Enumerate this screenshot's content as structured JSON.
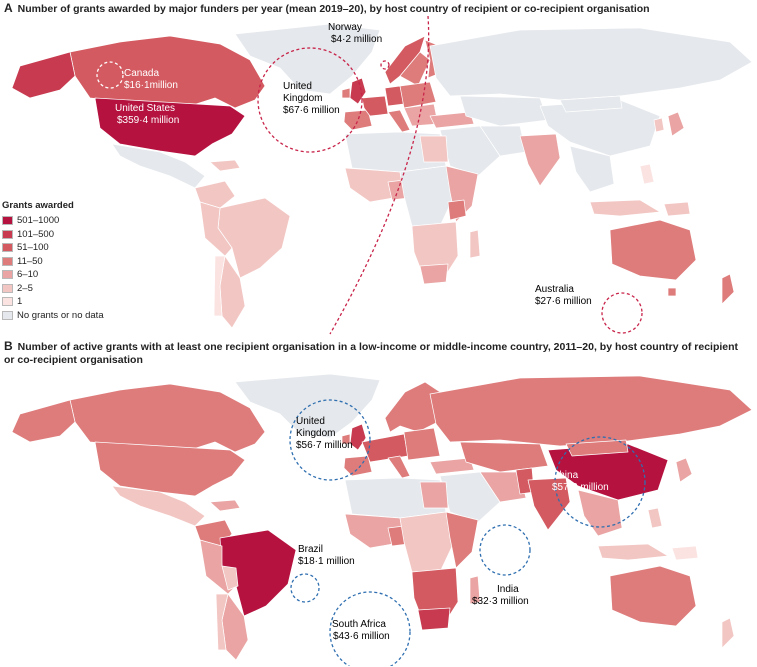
{
  "panel_a": {
    "letter": "A",
    "title": "Number of grants awarded by major funders per year (mean 2019–20), by host country of recipient or co-recipient organisation",
    "callouts": {
      "norway": {
        "name": "Norway",
        "amount": "$4·2 million"
      },
      "canada": {
        "name": "Canada",
        "amount": "$16·1million"
      },
      "united_states": {
        "name": "United States",
        "amount": "$359·4 million"
      },
      "united_kingdom": {
        "name1": "United",
        "name2": "Kingdom",
        "amount": "$67·6 million"
      },
      "australia": {
        "name": "Australia",
        "amount": "$27·6 million"
      }
    }
  },
  "panel_b": {
    "letter": "B",
    "title": "Number of active grants with at least one recipient organisation in a low-income or middle-income country, 2011–20, by host country of recipient or co-recipient organisation",
    "callouts": {
      "united_kingdom": {
        "name1": "United",
        "name2": "Kingdom",
        "amount": "$56·7 million"
      },
      "china": {
        "name": "China",
        "amount": "$57·8 million"
      },
      "brazil": {
        "name": "Brazil",
        "amount": "$18·1 million"
      },
      "india": {
        "name": "India",
        "amount": "$32·3 million"
      },
      "south_africa": {
        "name": "South Africa",
        "amount": "$43·6 million"
      }
    }
  },
  "legend": {
    "title": "Grants awarded",
    "items": [
      {
        "label": "501–1000",
        "color": "#b5123f"
      },
      {
        "label": "101–500",
        "color": "#c73a4f"
      },
      {
        "label": "51–100",
        "color": "#d35a60"
      },
      {
        "label": "11–50",
        "color": "#de7c7c"
      },
      {
        "label": "6–10",
        "color": "#e9a4a3"
      },
      {
        "label": "2–5",
        "color": "#f2c6c3"
      },
      {
        "label": "1",
        "color": "#fae3e1"
      },
      {
        "label": "No grants or no data",
        "color": "#e5e8ec"
      }
    ]
  },
  "colors": {
    "callout_a": "#c8244a",
    "callout_b": "#2f6fb0",
    "border": "#ffffff",
    "no_data": "#e5e8ec"
  }
}
